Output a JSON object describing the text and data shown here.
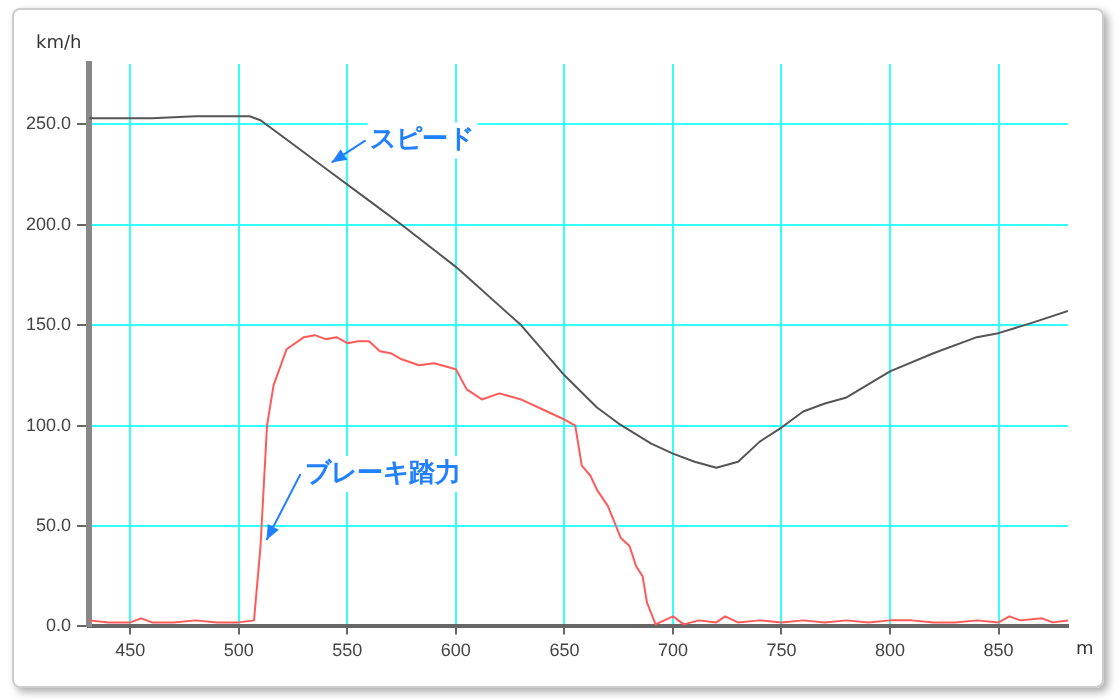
{
  "chart_data": {
    "type": "line",
    "ylabel": "km/h",
    "xlabel": "m",
    "xlim": [
      431,
      882
    ],
    "xticks": [
      450,
      500,
      550,
      600,
      650,
      700,
      750,
      800,
      850
    ],
    "ylim": [
      0,
      280
    ],
    "yticks": [
      {
        "value": 0,
        "label": "0.0"
      },
      {
        "value": 50,
        "label": "50.0"
      },
      {
        "value": 100,
        "label": "100.0"
      },
      {
        "value": 150,
        "label": "150.0"
      },
      {
        "value": 200,
        "label": "200.0"
      },
      {
        "value": 250,
        "label": "250.0"
      }
    ],
    "grid": true,
    "marker": "none",
    "line_style": "solid",
    "series": [
      {
        "name": "スピード",
        "color": "#555555",
        "x": [
          431,
          460,
          480,
          505,
          510,
          520,
          540,
          560,
          575,
          600,
          630,
          650,
          665,
          675,
          690,
          700,
          710,
          720,
          730,
          740,
          750,
          760,
          770,
          780,
          800,
          820,
          840,
          850,
          865,
          882
        ],
        "values": [
          253,
          253,
          254,
          254,
          252,
          244,
          228,
          212,
          200,
          179,
          150,
          125,
          109,
          101,
          91,
          86,
          82,
          79,
          82,
          92,
          99,
          107,
          111,
          114,
          127,
          136,
          144,
          146,
          151,
          157
        ]
      },
      {
        "name": "ブレーキ踏力",
        "color": "#ff5a5a",
        "x": [
          431,
          440,
          450,
          455,
          460,
          470,
          480,
          490,
          500,
          507,
          510,
          513,
          516,
          522,
          530,
          535,
          540,
          545,
          550,
          555,
          560,
          565,
          570,
          575,
          583,
          590,
          600,
          605,
          612,
          620,
          630,
          640,
          650,
          655,
          658,
          662,
          665,
          670,
          673,
          676,
          680,
          683,
          686,
          688,
          692,
          696,
          700,
          705,
          712,
          720,
          724,
          730,
          740,
          750,
          760,
          770,
          780,
          790,
          800,
          810,
          820,
          830,
          840,
          850,
          855,
          860,
          870,
          875,
          882
        ],
        "values": [
          3,
          2,
          2,
          4,
          2,
          2,
          3,
          2,
          2,
          3,
          40,
          100,
          120,
          138,
          144,
          145,
          143,
          144,
          141,
          142,
          142,
          137,
          136,
          133,
          130,
          131,
          128,
          118,
          113,
          116,
          113,
          108,
          103,
          100,
          80,
          75,
          68,
          60,
          52,
          44,
          40,
          30,
          25,
          12,
          1,
          3,
          5,
          1,
          3,
          2,
          5,
          2,
          3,
          2,
          3,
          2,
          3,
          2,
          3,
          3,
          2,
          2,
          3,
          2,
          5,
          3,
          4,
          2,
          3
        ]
      }
    ]
  }
}
